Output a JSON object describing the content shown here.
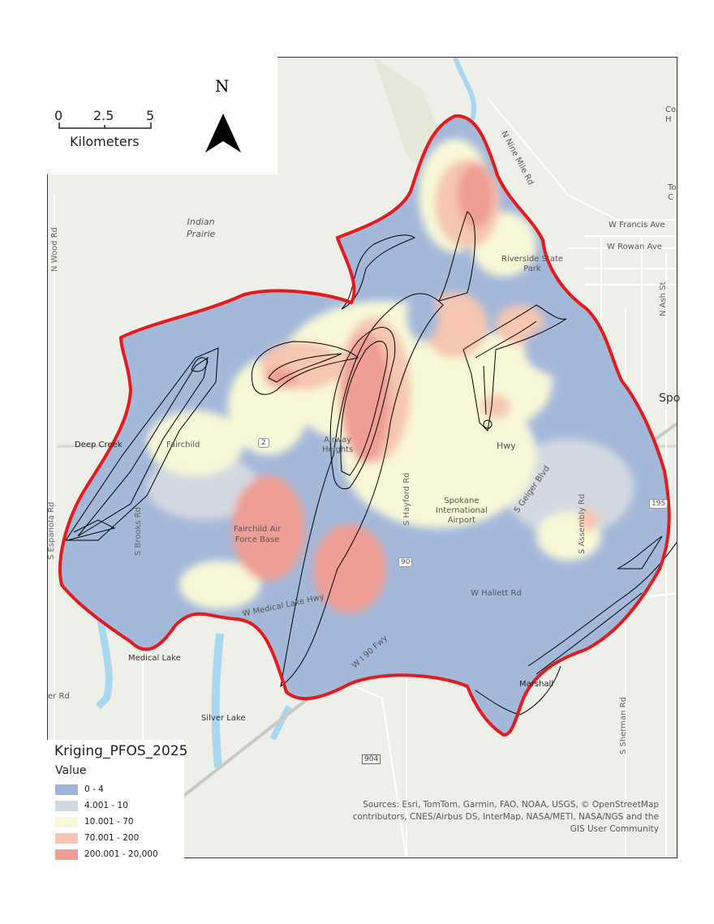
{
  "map_title": "Kriging_PFOS_2025",
  "scale_bar": {
    "ticks": [
      "0",
      "2.5",
      "5"
    ],
    "unit": "Kilometers"
  },
  "north_arrow": {
    "label": "N",
    "icon": "north-arrow-icon"
  },
  "legend": {
    "title": "Kriging_PFOS_2025",
    "field": "Value",
    "classes": [
      {
        "label": "0 - 4",
        "color": "#9fb4d8"
      },
      {
        "label": "4.001 - 10",
        "color": "#d3d9e0"
      },
      {
        "label": "10.001 - 70",
        "color": "#f8f8d8"
      },
      {
        "label": "70.001 - 200",
        "color": "#f6c6b0"
      },
      {
        "label": "200.001 - 20,000",
        "color": "#ee9e94"
      }
    ]
  },
  "boundary_color": "#e41a1c",
  "contour_color": "#000000",
  "place_labels": {
    "indian_prairie": "Indian\nPrairie",
    "deep_creek": "Deep Creek",
    "fairchild": "Fairchild",
    "fairchild_afb": "Fairchild Air\nForce Base",
    "airway_heights": "Airway\nHeights",
    "spokane_airport": "Spokane\nInternational\nAirport",
    "riverside": "Riverside State\nPark",
    "medical_lake": "Medical Lake",
    "silver_lake": "Silver Lake",
    "marshall": "Marshall",
    "spo": "Spo",
    "co_h": "Co\nH",
    "to_c": "To\nC"
  },
  "road_labels": {
    "n_wood": "N Wood Rd",
    "s_espanola": "S Espanola Rd",
    "s_brooks": "S Brooks Rd",
    "s_hayford": "S Hayford Rd",
    "s_geiger": "S Geiger Blvd",
    "s_assembly": "S Assembly Rd",
    "s_sherman": "S Sherman Rd",
    "n_ash": "N Ash St",
    "n_nine_mile": "N Nine Mile Rd",
    "w_francis": "W Francis Ave",
    "w_rowan": "W Rowan Ave",
    "w_hallett": "W Hallett Rd",
    "w_medical_lake": "W Medical Lake Hwy",
    "w_i90": "W I 90 Fwy",
    "hwy": "Hwy",
    "er_rd": "er Rd",
    "shield_2": "2",
    "shield_90": "90",
    "shield_195": "195",
    "shield_904": "904"
  },
  "sources": "Sources: Esri, TomTom, Garmin, FAO, NOAA, USGS, © OpenStreetMap contributors, CNES/Airbus DS, InterMap, NASA/METI, NASA/NGS and the GIS User Community"
}
